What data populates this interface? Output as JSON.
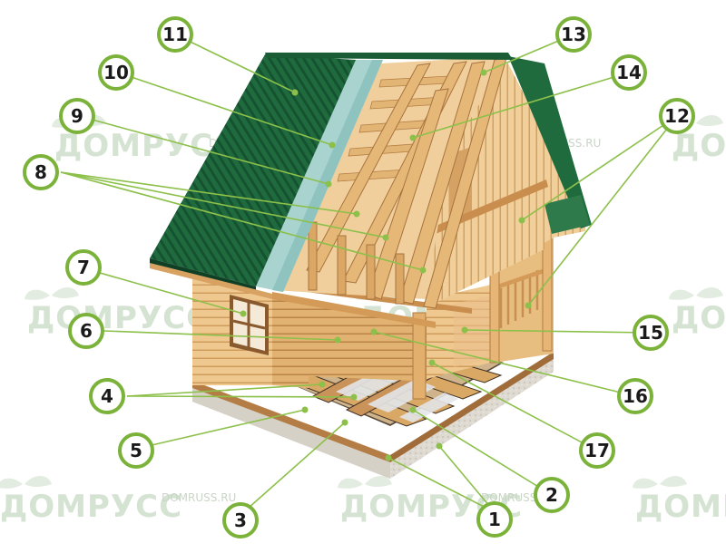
{
  "watermark": {
    "brand": "ДОМРУСС",
    "url": "DOMRUSS.RU"
  },
  "callouts": [
    "1",
    "2",
    "3",
    "4",
    "5",
    "6",
    "7",
    "8",
    "9",
    "10",
    "11",
    "12",
    "13",
    "14",
    "15",
    "16",
    "17"
  ],
  "colors": {
    "roof_green": "#1f6b3e",
    "roof_green_dark": "#155231",
    "insulation_blue": "#a9d3cf",
    "wood_light": "#efc88f",
    "wood_mid": "#dcab6c",
    "wood_dark": "#b47d45",
    "foundation": "#ddd9d0",
    "callout_border": "#7bb23a",
    "leader_line": "#8cc04a"
  }
}
